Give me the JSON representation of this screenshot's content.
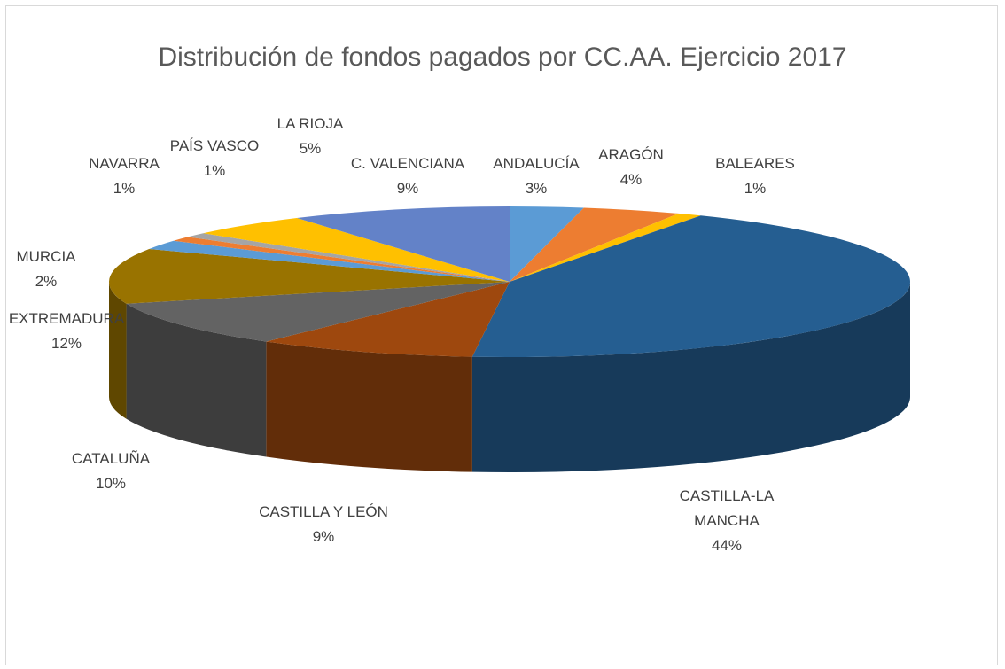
{
  "chart_data": {
    "type": "pie3d",
    "title": "Distribución de fondos pagados por CC.AA. Ejercicio 2017",
    "categories": [
      "ANDALUCÍA",
      "ARAGÓN",
      "BALEARES",
      "CASTILLA-LA MANCHA",
      "CASTILLA Y LEÓN",
      "CATALUÑA",
      "EXTREMADURA",
      "MURCIA",
      "NAVARRA",
      "PAÍS VASCO",
      "LA RIOJA",
      "C. VALENCIANA"
    ],
    "values": [
      3,
      4,
      1,
      44,
      9,
      10,
      12,
      2,
      1,
      1,
      5,
      9
    ],
    "value_labels": [
      "3%",
      "4%",
      "1%",
      "44%",
      "9%",
      "10%",
      "12%",
      "2%",
      "1%",
      "1%",
      "5%",
      "9%"
    ],
    "colors": [
      "#5b9bd5",
      "#ed7d31",
      "#ffc000",
      "#255e91",
      "#9e480e",
      "#636363",
      "#997300",
      "#5b9bd5",
      "#ed7d31",
      "#a5a5a5",
      "#ffc000",
      "#6382c8"
    ]
  }
}
